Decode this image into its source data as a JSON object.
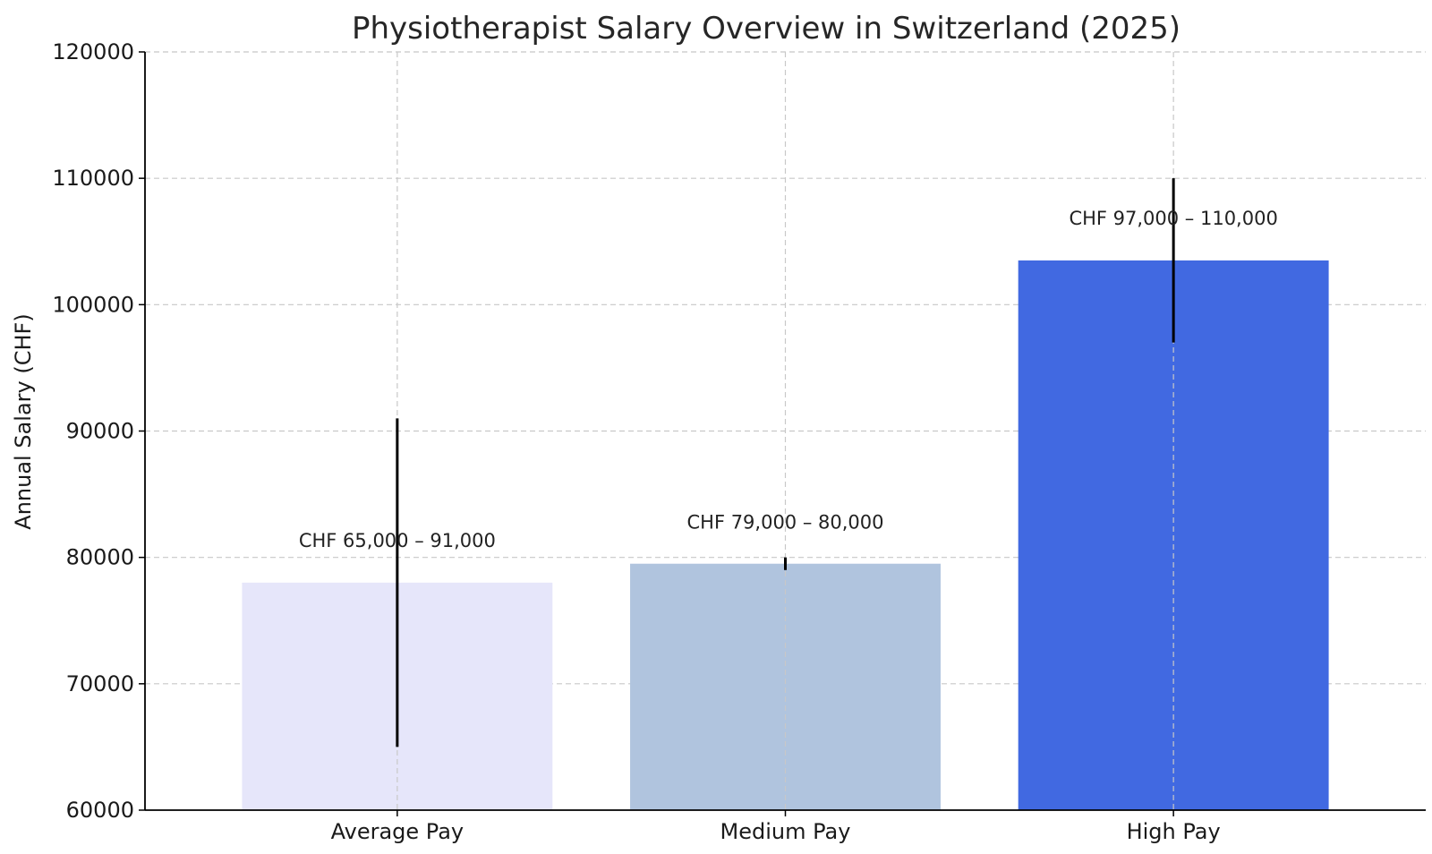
{
  "chart_data": {
    "type": "bar",
    "title": "Physiotherapist Salary Overview in Switzerland (2025)",
    "xlabel": "",
    "ylabel": "Annual Salary (CHF)",
    "ylim": [
      60000,
      120000
    ],
    "yticks": [
      60000,
      70000,
      80000,
      90000,
      100000,
      110000,
      120000
    ],
    "categories": [
      "Average Pay",
      "Medium Pay",
      "High Pay"
    ],
    "values": [
      78000,
      79500,
      103500
    ],
    "error_low": [
      65000,
      79000,
      97000
    ],
    "error_high": [
      91000,
      80000,
      110000
    ],
    "data_labels": [
      "CHF 65,000 – 91,000",
      "CHF 79,000 – 80,000",
      "CHF 97,000 – 110,000"
    ],
    "colors": [
      "#e6e6fa",
      "#b0c4de",
      "#4169e1"
    ],
    "grid": true,
    "legend": "none"
  }
}
